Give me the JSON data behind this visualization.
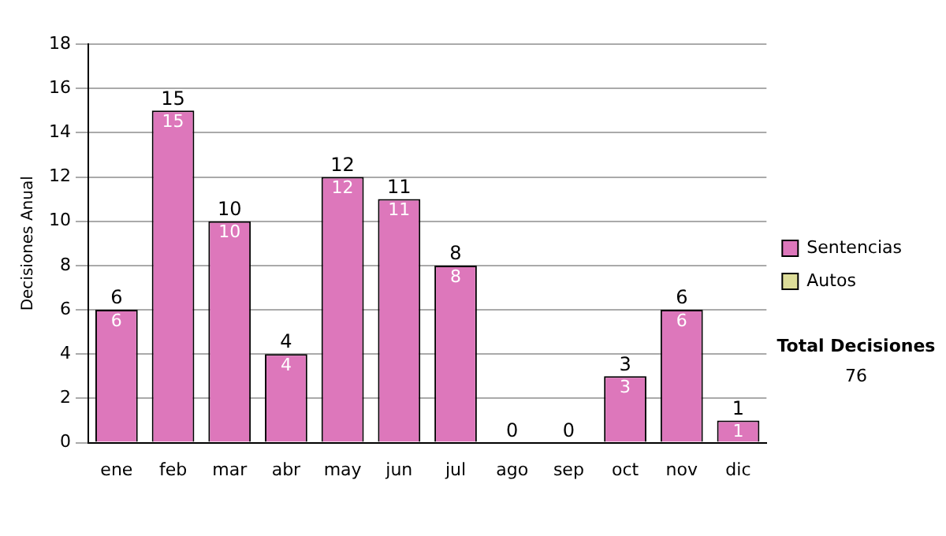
{
  "chart_data": {
    "type": "bar",
    "stacked": true,
    "ylabel": "Decisiones Anual",
    "categories": [
      "ene",
      "feb",
      "mar",
      "abr",
      "may",
      "jun",
      "jul",
      "ago",
      "sep",
      "oct",
      "nov",
      "dic"
    ],
    "series": [
      {
        "name": "Sentencias",
        "color": "#dd77bb",
        "values": [
          6,
          15,
          10,
          4,
          12,
          11,
          8,
          0,
          0,
          3,
          6,
          1
        ],
        "value_labels": [
          "6",
          "15",
          "10",
          "4",
          "12",
          "11",
          "8",
          null,
          null,
          "3",
          "6",
          "1"
        ]
      },
      {
        "name": "Autos",
        "color": "#dddd99",
        "values": [
          0,
          0,
          0,
          0,
          0,
          0,
          0,
          0,
          0,
          0,
          0,
          0
        ]
      }
    ],
    "totals": [
      "6",
      "15",
      "10",
      "4",
      "12",
      "11",
      "8",
      "0",
      "0",
      "3",
      "6",
      "1"
    ],
    "ylim": [
      0,
      18
    ],
    "yticks": [
      0,
      2,
      4,
      6,
      8,
      10,
      12,
      14,
      16,
      18
    ],
    "grid": "y",
    "legend": "right",
    "annotations": [
      "Total Decisiones",
      "76"
    ]
  }
}
